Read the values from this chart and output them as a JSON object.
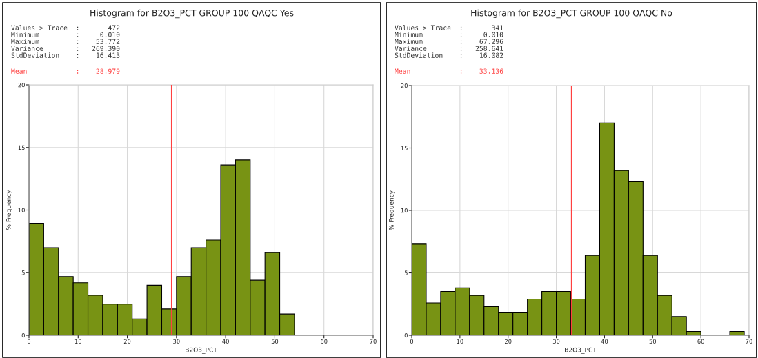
{
  "chart_data": [
    {
      "type": "histogram",
      "title": "Histogram for B2O3_PCT GROUP 100 QAQC Yes",
      "xlabel": "B2O3_PCT",
      "ylabel": "% Frequency",
      "annotations": [
        "Values > Trace  :       472",
        "Minimum         :     0.010",
        "Maximum         :    53.772",
        "Variance        :   269.390",
        "StdDeviation    :    16.413"
      ],
      "bins": [
        0,
        3,
        6,
        9,
        12,
        15,
        18,
        21,
        24,
        27,
        30,
        33,
        36,
        39,
        42,
        45,
        48,
        51,
        54
      ],
      "values": [
        8.9,
        7.0,
        4.7,
        4.2,
        3.2,
        2.5,
        2.5,
        1.3,
        4.0,
        2.1,
        4.7,
        7.0,
        7.6,
        13.6,
        14.0,
        4.4,
        6.6,
        1.7
      ],
      "color": "#789314",
      "ref_lines": [
        {
          "axis": "x",
          "value": 28.979,
          "label": "Mean            :    28.979",
          "color": "#ff4040"
        }
      ],
      "xlim": [
        0,
        70
      ],
      "xticks": [
        0,
        10,
        20,
        30,
        40,
        50,
        60,
        70
      ],
      "ylim": [
        0,
        20
      ],
      "yticks": [
        0,
        5,
        10,
        15,
        20
      ],
      "grid": true
    },
    {
      "type": "histogram",
      "title": "Histogram for B2O3_PCT GROUP 100 QAQC No",
      "xlabel": "B2O3_PCT",
      "ylabel": "% Frequency",
      "annotations": [
        "Values > Trace  :       341",
        "Minimum         :     0.010",
        "Maximum         :    67.296",
        "Variance        :   258.641",
        "StdDeviation    :    16.082"
      ],
      "bins": [
        0,
        3,
        6,
        9,
        12,
        15,
        18,
        21,
        24,
        27,
        30,
        33,
        36,
        39,
        42,
        45,
        48,
        51,
        54,
        57,
        60,
        63,
        66,
        69
      ],
      "values": [
        7.3,
        2.6,
        3.5,
        3.8,
        3.2,
        2.3,
        1.8,
        1.8,
        2.9,
        3.5,
        3.5,
        2.9,
        6.4,
        17.0,
        13.2,
        12.3,
        6.4,
        3.2,
        1.5,
        0.3,
        0,
        0,
        0.3
      ],
      "color": "#789314",
      "ref_lines": [
        {
          "axis": "x",
          "value": 33.136,
          "label": "Mean            :    33.136",
          "color": "#ff4040"
        }
      ],
      "xlim": [
        0,
        70
      ],
      "xticks": [
        0,
        10,
        20,
        30,
        40,
        50,
        60,
        70
      ],
      "ylim": [
        0,
        20
      ],
      "yticks": [
        0,
        5,
        10,
        15,
        20
      ],
      "grid": true
    }
  ]
}
